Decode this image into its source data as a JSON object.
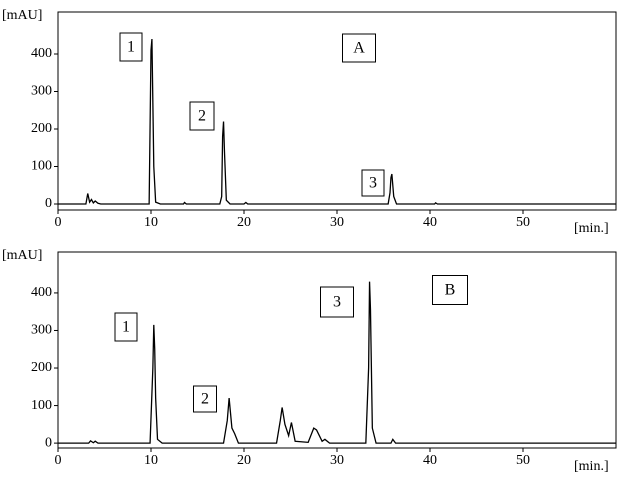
{
  "chart_data": [
    {
      "type": "line",
      "ylabel": "[mAU]",
      "xlabel": "[min.]",
      "annotations": [
        "1",
        "2",
        "3",
        "A"
      ],
      "xlim": [
        0,
        60
      ],
      "ylim": [
        -16,
        512
      ],
      "xticks": [
        0,
        10,
        20,
        30,
        40,
        50
      ],
      "yticks": [
        0,
        100,
        200,
        300,
        400
      ],
      "color": "#000000",
      "x": [
        0,
        3.0,
        3.2,
        3.4,
        3.6,
        3.8,
        4.0,
        4.3,
        4.6,
        9.8,
        10.0,
        10.1,
        10.2,
        10.3,
        10.5,
        11,
        13.5,
        13.6,
        13.8,
        17.4,
        17.6,
        17.7,
        17.8,
        17.9,
        18.1,
        18.5,
        20,
        20.2,
        20.4,
        35.5,
        35.7,
        35.8,
        35.9,
        36.1,
        36.4,
        40.5,
        40.6,
        40.8,
        60
      ],
      "values": [
        0,
        0,
        28,
        5,
        12,
        3,
        8,
        2,
        0,
        0,
        410,
        440,
        270,
        100,
        5,
        0,
        0,
        4,
        0,
        0,
        20,
        180,
        220,
        140,
        10,
        0,
        0,
        4,
        0,
        0,
        30,
        70,
        80,
        20,
        0,
        0,
        3,
        0,
        0
      ]
    },
    {
      "type": "line",
      "ylabel": "[mAU]",
      "xlabel": "[min.]",
      "annotations": [
        "1",
        "2",
        "3",
        "B"
      ],
      "xlim": [
        0,
        60
      ],
      "ylim": [
        -13,
        509
      ],
      "xticks": [
        0,
        10,
        20,
        30,
        40,
        50
      ],
      "yticks": [
        0,
        100,
        200,
        300,
        400
      ],
      "color": "#000000",
      "x": [
        0,
        3.3,
        3.5,
        3.8,
        4.0,
        4.3,
        9.9,
        10.2,
        10.3,
        10.4,
        10.5,
        10.7,
        11.2,
        17.8,
        18.2,
        18.4,
        18.7,
        19.0,
        19.4,
        23.5,
        23.9,
        24.1,
        24.4,
        24.8,
        25.1,
        25.5,
        26.9,
        27.5,
        27.8,
        28.4,
        28.7,
        29.2,
        33.1,
        33.4,
        33.5,
        33.6,
        33.8,
        34.2,
        35.8,
        36.0,
        36.3,
        60
      ],
      "values": [
        0,
        0,
        6,
        1,
        5,
        0,
        0,
        200,
        315,
        250,
        120,
        10,
        0,
        0,
        60,
        120,
        40,
        25,
        0,
        0,
        60,
        95,
        50,
        20,
        55,
        5,
        2,
        40,
        35,
        5,
        10,
        0,
        0,
        200,
        430,
        355,
        40,
        0,
        0,
        10,
        0,
        0
      ]
    }
  ]
}
